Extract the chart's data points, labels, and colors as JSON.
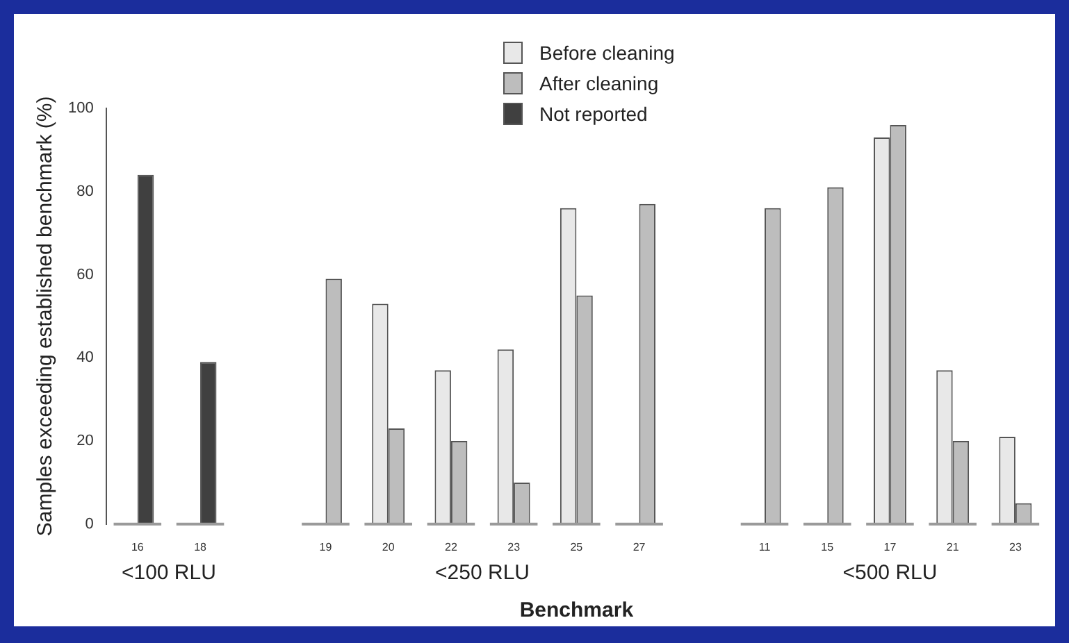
{
  "chart_data": {
    "type": "bar",
    "xlabel": "Benchmark",
    "ylabel": "Samples exceeding established benchmark (%)",
    "categories": [
      "16",
      "18",
      null,
      "19",
      "20",
      "22",
      "23",
      "25",
      "27",
      null,
      "11",
      "15",
      "17",
      "21",
      "23"
    ],
    "series": [
      {
        "name": "Before cleaning",
        "color": "#e8e8e8",
        "values": [
          null,
          null,
          null,
          null,
          53,
          37,
          42,
          76,
          null,
          null,
          null,
          null,
          93,
          37,
          21
        ]
      },
      {
        "name": "After cleaning",
        "color": "#bdbdbd",
        "values": [
          null,
          null,
          null,
          59,
          23,
          20,
          10,
          55,
          77,
          null,
          76,
          81,
          96,
          20,
          5
        ]
      },
      {
        "name": "Not reported",
        "color": "#404040",
        "values": [
          84,
          39,
          null,
          null,
          null,
          null,
          null,
          null,
          null,
          null,
          null,
          null,
          null,
          null,
          null
        ]
      }
    ],
    "annotations": [
      "<100 RLU",
      "<250 RLU",
      "<500 RLU"
    ],
    "ylim": [
      0,
      100
    ],
    "yticks": [
      0,
      20,
      40,
      60,
      80,
      100
    ],
    "grid": false,
    "legend": "top"
  }
}
